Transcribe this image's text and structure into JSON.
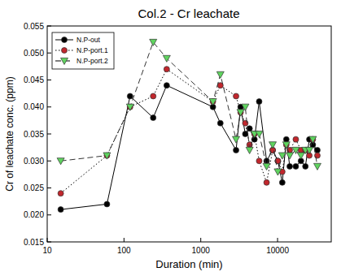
{
  "chart_data": {
    "type": "line",
    "title": "Col.2 - Cr leachate",
    "x_label": "Duration (min)",
    "y_label": "Cr of leachate conc. (ppm)",
    "log": "x",
    "grid": false,
    "legend": "top-left",
    "x": [
      15,
      60,
      120,
      240,
      360,
      1440,
      1800,
      2880,
      3300,
      3800,
      4320,
      5000,
      5760,
      7200,
      8640,
      10080,
      11520,
      13000,
      14400,
      17280,
      20160,
      23040,
      25920,
      28800,
      33000
    ],
    "xlim": [
      10,
      50000
    ],
    "xticks": [
      10,
      100,
      1000,
      10000
    ],
    "ylim": [
      0.015,
      0.055
    ],
    "yticks": [
      {
        "value": 0.015,
        "label": "0.015"
      },
      {
        "value": 0.02,
        "label": "0.020"
      },
      {
        "value": 0.025,
        "label": "0.025"
      },
      {
        "value": 0.03,
        "label": "0.030"
      },
      {
        "value": 0.035,
        "label": "0.035"
      },
      {
        "value": 0.04,
        "label": "0.040"
      },
      {
        "value": 0.045,
        "label": "0.045"
      },
      {
        "value": 0.05,
        "label": "0.050"
      },
      {
        "value": 0.055,
        "label": "0.055"
      }
    ],
    "series": [
      {
        "name": "N.P-out",
        "color": "#000000",
        "marker": "circle",
        "line_style": "solid",
        "values": [
          0.021,
          0.022,
          0.042,
          0.038,
          0.044,
          0.04,
          0.037,
          0.032,
          0.04,
          0.035,
          0.036,
          0.034,
          0.041,
          0.03,
          0.032,
          0.03,
          0.026,
          0.034,
          0.029,
          0.029,
          0.03,
          0.029,
          0.034,
          0.033,
          0.032
        ]
      },
      {
        "name": "N.P-port.1",
        "color": "#c1272d",
        "marker": "circle",
        "line_style": "dotted",
        "values": [
          0.024,
          0.031,
          0.04,
          0.042,
          0.047,
          0.041,
          0.044,
          0.042,
          0.039,
          0.037,
          0.033,
          0.035,
          0.03,
          0.026,
          0.032,
          0.03,
          0.028,
          0.033,
          0.032,
          0.034,
          0.032,
          0.032,
          0.031,
          0.034,
          0.031
        ]
      },
      {
        "name": "N.P-port.2",
        "color": "#5fd35f",
        "marker": "triangle-down",
        "line_style": "dashed",
        "values": [
          0.03,
          0.031,
          0.04,
          0.052,
          0.049,
          0.041,
          0.046,
          0.034,
          0.039,
          0.04,
          0.032,
          0.035,
          0.035,
          0.029,
          0.033,
          0.028,
          0.031,
          0.033,
          0.031,
          0.032,
          0.031,
          0.032,
          0.032,
          0.034,
          0.029
        ]
      }
    ]
  }
}
